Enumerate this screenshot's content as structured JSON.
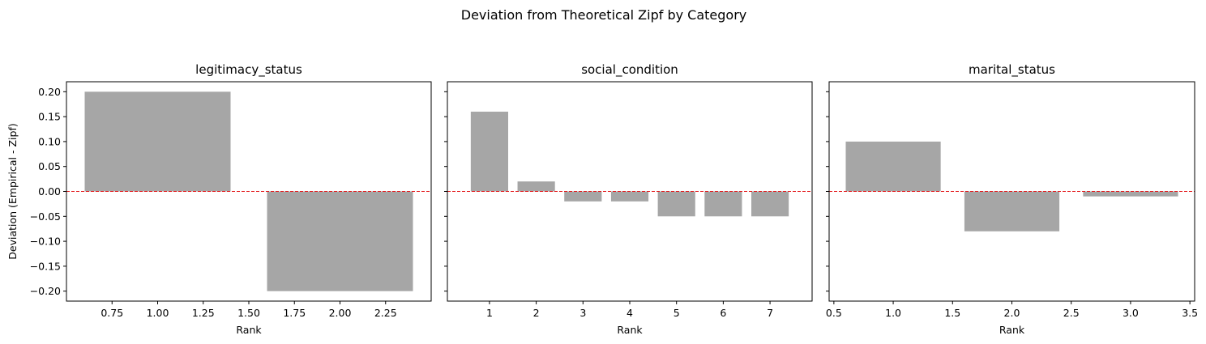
{
  "figure": {
    "title": "Deviation from Theoretical Zipf by Category"
  },
  "chart_data": [
    {
      "type": "bar",
      "title": "legitimacy_status",
      "xlabel": "Rank",
      "ylabel": "Deviation (Empirical - Zipf)",
      "x": [
        1,
        2
      ],
      "values": [
        0.2,
        -0.2
      ],
      "xlim": [
        0.5,
        2.5
      ],
      "ylim": [
        -0.22,
        0.22
      ],
      "xticks": [
        0.75,
        1.0,
        1.25,
        1.5,
        1.75,
        2.0,
        2.25
      ],
      "xtick_labels": [
        "0.75",
        "1.00",
        "1.25",
        "1.50",
        "1.75",
        "2.00",
        "2.25"
      ],
      "yticks": [
        0.2,
        0.15,
        0.1,
        0.05,
        0.0,
        -0.05,
        -0.1,
        -0.15,
        -0.2
      ],
      "ytick_labels": [
        "0.20",
        "0.15",
        "0.10",
        "0.05",
        "0.00",
        "−0.05",
        "−0.10",
        "−0.15",
        "−0.20"
      ],
      "bar_color": "#a6a6a6",
      "reference_line": {
        "y": 0,
        "color": "#e41a1c",
        "style": "dashed"
      },
      "grid": false
    },
    {
      "type": "bar",
      "title": "social_condition",
      "xlabel": "Rank",
      "ylabel": "",
      "x": [
        1,
        2,
        3,
        4,
        5,
        6,
        7
      ],
      "values": [
        0.16,
        0.02,
        -0.02,
        -0.02,
        -0.05,
        -0.05,
        -0.05
      ],
      "xlim": [
        0.1,
        7.9
      ],
      "ylim": [
        -0.22,
        0.22
      ],
      "xticks": [
        1,
        2,
        3,
        4,
        5,
        6,
        7
      ],
      "xtick_labels": [
        "1",
        "2",
        "3",
        "4",
        "5",
        "6",
        "7"
      ],
      "yticks": [
        0.2,
        0.15,
        0.1,
        0.05,
        0.0,
        -0.05,
        -0.1,
        -0.15,
        -0.2
      ],
      "ytick_labels": [],
      "bar_color": "#a6a6a6",
      "reference_line": {
        "y": 0,
        "color": "#e41a1c",
        "style": "dashed"
      },
      "grid": false
    },
    {
      "type": "bar",
      "title": "marital_status",
      "xlabel": "Rank",
      "ylabel": "",
      "x": [
        1,
        2,
        3
      ],
      "values": [
        0.1,
        -0.08,
        -0.01
      ],
      "xlim": [
        0.46,
        3.54
      ],
      "ylim": [
        -0.22,
        0.22
      ],
      "xticks": [
        0.5,
        1.0,
        1.5,
        2.0,
        2.5,
        3.0,
        3.5
      ],
      "xtick_labels": [
        "0.5",
        "1.0",
        "1.5",
        "2.0",
        "2.5",
        "3.0",
        "3.5"
      ],
      "yticks": [
        0.2,
        0.15,
        0.1,
        0.05,
        0.0,
        -0.05,
        -0.1,
        -0.15,
        -0.2
      ],
      "ytick_labels": [],
      "bar_color": "#a6a6a6",
      "reference_line": {
        "y": 0,
        "color": "#e41a1c",
        "style": "dashed"
      },
      "grid": false
    }
  ]
}
